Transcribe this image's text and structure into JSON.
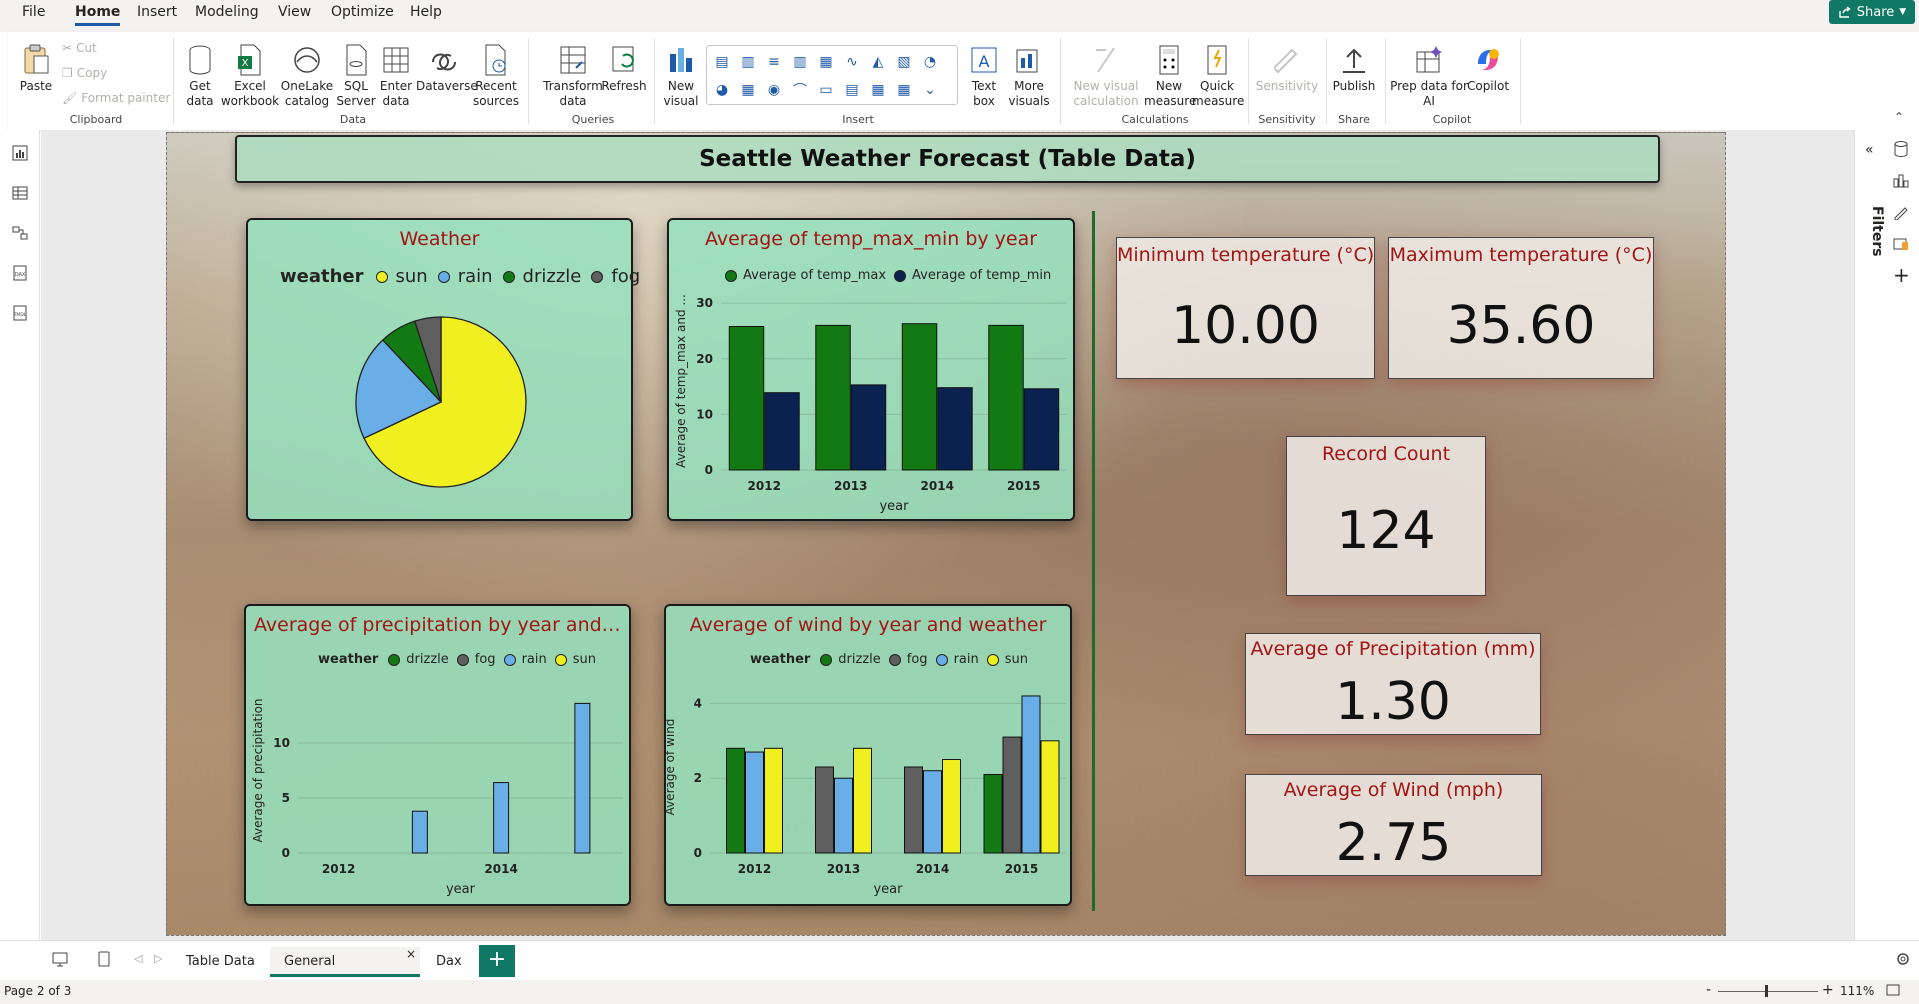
{
  "menu": {
    "items": [
      "File",
      "Home",
      "Insert",
      "Modeling",
      "View",
      "Optimize",
      "Help"
    ],
    "active": "Home",
    "share_label": "Share"
  },
  "ribbon": {
    "clipboard": {
      "paste": "Paste",
      "cut": "Cut",
      "copy": "Copy",
      "format_painter": "Format painter",
      "group": "Clipboard"
    },
    "data": {
      "get_data": "Get data",
      "excel": "Excel workbook",
      "onelake": "OneLake catalog",
      "sql": "SQL Server",
      "enter": "Enter data",
      "dataverse": "Dataverse",
      "recent": "Recent sources",
      "group": "Data"
    },
    "queries": {
      "transform": "Transform data",
      "refresh": "Refresh",
      "group": "Queries"
    },
    "insert": {
      "new_visual": "New visual",
      "text_box": "Text box",
      "more_visuals": "More visuals",
      "group": "Insert"
    },
    "calculations": {
      "new_visual_calc": "New visual calculation",
      "new_measure": "New measure",
      "quick_measure": "Quick measure",
      "group": "Calculations"
    },
    "sensitivity": {
      "label": "Sensitivity",
      "group": "Sensitivity"
    },
    "share": {
      "publish": "Publish",
      "group": "Share"
    },
    "copilot": {
      "prep": "Prep data for AI",
      "copilot": "Copilot",
      "group": "Copilot"
    }
  },
  "report": {
    "title": "Seattle Weather Forecast (Table Data)",
    "cards": {
      "min_temp": {
        "title": "Minimum temperature (°C)",
        "value": "10.00"
      },
      "max_temp": {
        "title": "Maximum temperature (°C)",
        "value": "35.60"
      },
      "record_count": {
        "title": "Record Count",
        "value": "124"
      },
      "avg_precip": {
        "title": "Average of Precipitation (mm)",
        "value": "1.30"
      },
      "avg_wind": {
        "title": "Average of Wind (mph)",
        "value": "2.75"
      }
    }
  },
  "colors": {
    "sun": "#f0f020",
    "rain": "#6aaee8",
    "drizzle": "#137a13",
    "fog": "#5f5f5f",
    "temp_max": "#137a13",
    "temp_min": "#0b2150",
    "title_red": "#a31515"
  },
  "chart_data": [
    {
      "id": "weather_pie",
      "type": "pie",
      "title": "Weather",
      "legend_title": "weather",
      "categories": [
        "sun",
        "rain",
        "drizzle",
        "fog"
      ],
      "values": [
        68,
        20,
        7,
        5
      ]
    },
    {
      "id": "temp_bar",
      "type": "bar",
      "title": "Average of temp_max_min by year",
      "xlabel": "year",
      "ylabel": "Average of temp_max and ...",
      "categories": [
        "2012",
        "2013",
        "2014",
        "2015"
      ],
      "series": [
        {
          "name": "Average of temp_max",
          "values": [
            25.8,
            26.0,
            26.3,
            26.0
          ]
        },
        {
          "name": "Average of temp_min",
          "values": [
            13.9,
            15.3,
            14.8,
            14.6
          ]
        }
      ],
      "yticks": [
        0,
        10,
        20,
        30
      ],
      "ylim": [
        0,
        32
      ]
    },
    {
      "id": "precip_bar",
      "type": "bar",
      "title": "Average of precipitation by year and ...",
      "legend_title": "weather",
      "xlabel": "year",
      "ylabel": "Average of precipitation",
      "categories": [
        "2012",
        "2013",
        "2014",
        "2015"
      ],
      "xtick_labels": [
        "2012",
        "",
        "2014",
        ""
      ],
      "series": [
        {
          "name": "drizzle",
          "values": [
            0,
            0,
            0,
            0
          ]
        },
        {
          "name": "fog",
          "values": [
            0,
            0,
            0,
            0
          ]
        },
        {
          "name": "rain",
          "values": [
            0,
            3.8,
            6.4,
            13.6
          ]
        },
        {
          "name": "sun",
          "values": [
            0,
            0,
            0,
            0
          ]
        }
      ],
      "yticks": [
        0,
        5,
        10
      ],
      "ylim": [
        0,
        15
      ]
    },
    {
      "id": "wind_bar",
      "type": "bar",
      "title": "Average of wind by year and weather",
      "legend_title": "weather",
      "xlabel": "year",
      "ylabel": "Average of wind",
      "categories": [
        "2012",
        "2013",
        "2014",
        "2015"
      ],
      "series": [
        {
          "name": "drizzle",
          "values": [
            2.8,
            null,
            null,
            2.1
          ]
        },
        {
          "name": "fog",
          "values": [
            null,
            2.3,
            2.3,
            3.1
          ]
        },
        {
          "name": "rain",
          "values": [
            2.7,
            2.0,
            2.2,
            4.2
          ]
        },
        {
          "name": "sun",
          "values": [
            2.8,
            2.8,
            2.5,
            3.0
          ]
        }
      ],
      "yticks": [
        0,
        2,
        4
      ],
      "ylim": [
        0,
        4.6
      ]
    }
  ],
  "page_tabs": [
    "Table Data",
    "General Information",
    "Dax"
  ],
  "active_tab": "General Information",
  "status": {
    "page": "Page 2 of 3",
    "zoom": "111%"
  },
  "right_rail": {
    "filters_label": "Filters"
  }
}
